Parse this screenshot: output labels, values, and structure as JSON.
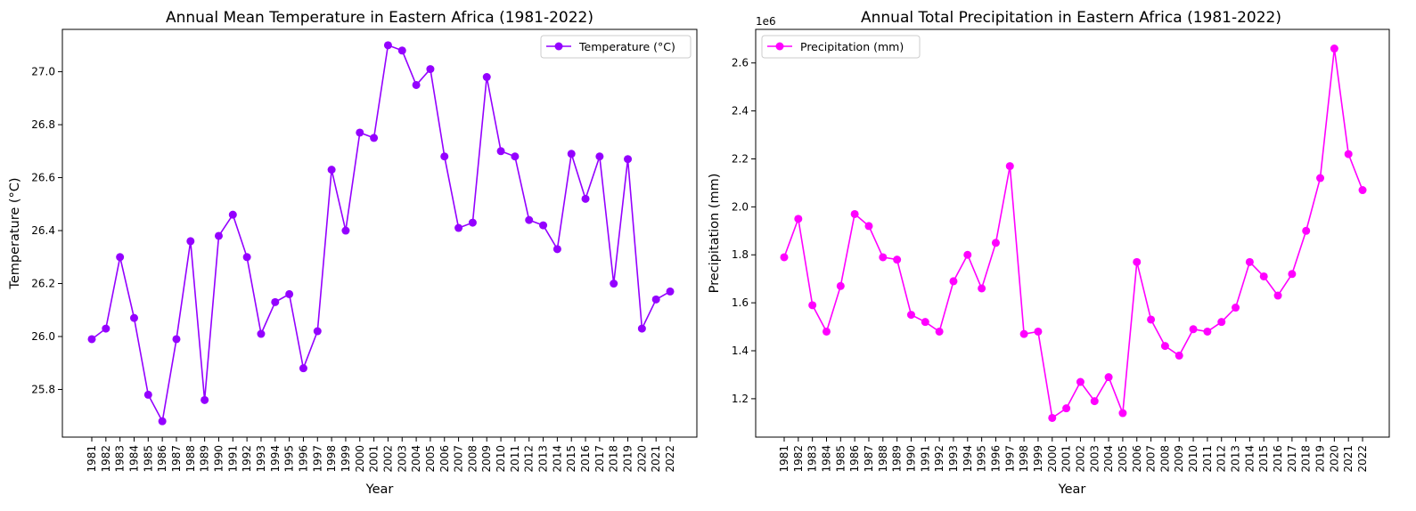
{
  "chart_data": [
    {
      "type": "line",
      "title": "Annual Mean Temperature in Eastern Africa (1981-2022)",
      "xlabel": "Year",
      "ylabel": "Temperature (°C)",
      "x": [
        1981,
        1982,
        1983,
        1984,
        1985,
        1986,
        1987,
        1988,
        1989,
        1990,
        1991,
        1992,
        1993,
        1994,
        1995,
        1996,
        1997,
        1998,
        1999,
        2000,
        2001,
        2002,
        2003,
        2004,
        2005,
        2006,
        2007,
        2008,
        2009,
        2010,
        2011,
        2012,
        2013,
        2014,
        2015,
        2016,
        2017,
        2018,
        2019,
        2020,
        2021,
        2022
      ],
      "series": [
        {
          "name": "Temperature (°C)",
          "color": "#9400ff",
          "values": [
            25.99,
            26.03,
            26.3,
            26.07,
            25.78,
            25.68,
            25.99,
            26.36,
            25.76,
            26.38,
            26.46,
            26.3,
            26.01,
            26.13,
            26.16,
            25.88,
            26.02,
            26.63,
            26.4,
            26.77,
            26.75,
            27.1,
            27.08,
            26.95,
            27.01,
            26.68,
            26.41,
            26.43,
            26.98,
            26.7,
            26.68,
            26.44,
            26.42,
            26.33,
            26.69,
            26.52,
            26.68,
            26.2,
            26.67,
            26.03,
            26.14,
            26.17
          ]
        }
      ],
      "ylim": [
        25.62,
        27.16
      ],
      "yticks": [
        "25.8",
        "26.0",
        "26.2",
        "26.4",
        "26.6",
        "26.8",
        "27.0"
      ],
      "ytick_values": [
        25.8,
        26.0,
        26.2,
        26.4,
        26.6,
        26.8,
        27.0
      ],
      "xticks": [
        "1981",
        "1982",
        "1983",
        "1984",
        "1985",
        "1986",
        "1987",
        "1988",
        "1989",
        "1990",
        "1991",
        "1992",
        "1993",
        "1994",
        "1995",
        "1996",
        "1997",
        "1998",
        "1999",
        "2000",
        "2001",
        "2002",
        "2003",
        "2004",
        "2005",
        "2006",
        "2007",
        "2008",
        "2009",
        "2010",
        "2011",
        "2012",
        "2013",
        "2014",
        "2015",
        "2016",
        "2017",
        "2018",
        "2019",
        "2020",
        "2021",
        "2022"
      ],
      "legend_position": "top-right",
      "grid": false
    },
    {
      "type": "line",
      "title": "Annual Total Precipitation in Eastern Africa (1981-2022)",
      "xlabel": "Year",
      "ylabel": "Precipitation (mm)",
      "y_offset_label": "1e6",
      "x": [
        1981,
        1982,
        1983,
        1984,
        1985,
        1986,
        1987,
        1988,
        1989,
        1990,
        1991,
        1992,
        1993,
        1994,
        1995,
        1996,
        1997,
        1998,
        1999,
        2000,
        2001,
        2002,
        2003,
        2004,
        2005,
        2006,
        2007,
        2008,
        2009,
        2010,
        2011,
        2012,
        2013,
        2014,
        2015,
        2016,
        2017,
        2018,
        2019,
        2020,
        2021,
        2022
      ],
      "series": [
        {
          "name": "Precipitation (mm)",
          "color": "#ff00ff",
          "values": [
            1.79,
            1.95,
            1.59,
            1.48,
            1.67,
            1.97,
            1.92,
            1.79,
            1.78,
            1.55,
            1.52,
            1.48,
            1.69,
            1.8,
            1.66,
            1.85,
            2.17,
            1.47,
            1.48,
            1.12,
            1.16,
            1.27,
            1.19,
            1.29,
            1.14,
            1.77,
            1.53,
            1.42,
            1.38,
            1.49,
            1.48,
            1.52,
            1.58,
            1.77,
            1.71,
            1.63,
            1.72,
            1.9,
            2.12,
            2.66,
            2.22,
            2.07
          ]
        }
      ],
      "ylim": [
        1.04,
        2.74
      ],
      "yticks": [
        "1.2",
        "1.4",
        "1.6",
        "1.8",
        "2.0",
        "2.2",
        "2.4",
        "2.6"
      ],
      "ytick_values": [
        1.2,
        1.4,
        1.6,
        1.8,
        2.0,
        2.2,
        2.4,
        2.6
      ],
      "xticks": [
        "1981",
        "1982",
        "1983",
        "1984",
        "1985",
        "1986",
        "1987",
        "1988",
        "1989",
        "1990",
        "1991",
        "1992",
        "1993",
        "1994",
        "1995",
        "1996",
        "1997",
        "1998",
        "1999",
        "2000",
        "2001",
        "2002",
        "2003",
        "2004",
        "2005",
        "2006",
        "2007",
        "2008",
        "2009",
        "2010",
        "2011",
        "2012",
        "2013",
        "2014",
        "2015",
        "2016",
        "2017",
        "2018",
        "2019",
        "2020",
        "2021",
        "2022"
      ],
      "legend_position": "top-left",
      "grid": false
    }
  ]
}
